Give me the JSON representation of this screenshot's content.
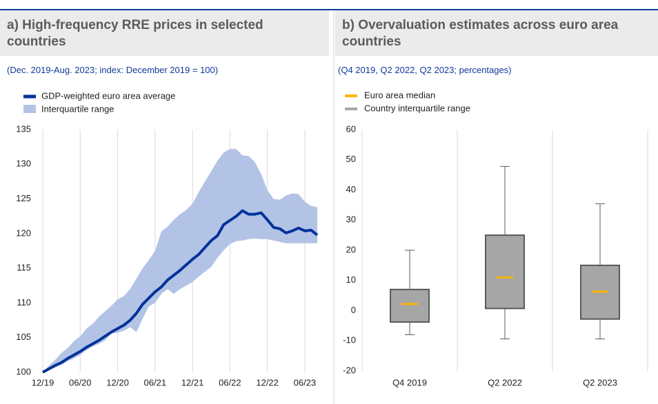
{
  "chart_data": [
    {
      "type": "line",
      "title": "a) High-frequency RRE prices in selected countries",
      "subtitle": "(Dec. 2019-Aug. 2023; index: December 2019 = 100)",
      "categories": [
        "12/19",
        null,
        null,
        null,
        null,
        null,
        "06/20",
        null,
        null,
        null,
        null,
        null,
        "12/20",
        null,
        null,
        null,
        null,
        null,
        "06/21",
        null,
        null,
        null,
        null,
        null,
        "12/21",
        null,
        null,
        null,
        null,
        null,
        "06/22",
        null,
        null,
        null,
        null,
        null,
        "12/22",
        null,
        null,
        null,
        null,
        null,
        "06/23",
        null,
        null
      ],
      "series": [
        {
          "name": "GDP-weighted euro area average",
          "color": "#003299",
          "values": [
            100,
            100.5,
            101,
            101.4,
            102,
            102.5,
            103,
            103.6,
            104.1,
            104.6,
            105.2,
            105.8,
            106.3,
            106.8,
            107.5,
            108.5,
            109.8,
            110.7,
            111.6,
            112.3,
            113.3,
            114,
            114.7,
            115.5,
            116.3,
            117,
            118,
            119,
            119.7,
            121.3,
            121.9,
            122.5,
            123.3,
            122.8,
            122.8,
            123,
            122,
            120.9,
            120.7,
            120.1,
            120.4,
            120.8,
            120.4,
            120.5,
            119.8
          ]
        },
        {
          "name": "Interquartile range",
          "color": "#b3c3e6",
          "upper": [
            100,
            101,
            101.8,
            102.8,
            103.5,
            104.5,
            105.2,
            106.3,
            107,
            108,
            108.8,
            109.6,
            110.5,
            111,
            112,
            113.5,
            115,
            116.2,
            117.5,
            120.3,
            121,
            122,
            122.8,
            123.4,
            124.3,
            126,
            127.5,
            129,
            130.5,
            131.7,
            132.2,
            132.2,
            131.3,
            131.2,
            130.3,
            128.6,
            126.3,
            125,
            124.9,
            125.5,
            125.8,
            125.7,
            124.6,
            124,
            123.8
          ],
          "lower": [
            100,
            100.3,
            100.7,
            101.1,
            101.6,
            102,
            102.5,
            103.2,
            103.7,
            104.1,
            104.6,
            105.6,
            105.7,
            106,
            106.5,
            105.8,
            107.7,
            109.5,
            110,
            111.3,
            112,
            111.3,
            112,
            112.5,
            113,
            113.8,
            114.5,
            115.2,
            116.5,
            117.6,
            118.5,
            118.9,
            119,
            119.2,
            119.3,
            119.2,
            119.2,
            119,
            118.8,
            118.6,
            118.6,
            118.6,
            118.6,
            118.6,
            118.6
          ]
        }
      ],
      "ylim": [
        100,
        135
      ],
      "yticks": [
        100,
        105,
        110,
        115,
        120,
        125,
        130,
        135
      ],
      "grid": true
    },
    {
      "type": "box",
      "title": "b) Overvaluation estimates across euro area countries",
      "subtitle": "(Q4 2019, Q2 2022, Q2 2023; percentages)",
      "categories": [
        "Q4 2019",
        "Q2 2022",
        "Q2 2023"
      ],
      "series": [
        {
          "name": "Euro area median",
          "color": "#ffb400",
          "values": [
            2.2,
            11,
            6.3
          ]
        },
        {
          "name": "Country interquartile range",
          "color": "#a6a6a6",
          "low": [
            -8,
            -9.4,
            -9.4
          ],
          "q1": [
            -3.8,
            0.7,
            -2.8
          ],
          "q3": [
            7,
            25,
            15
          ],
          "high": [
            20,
            47.8,
            35.4
          ]
        }
      ],
      "ylim": [
        -20,
        60
      ],
      "yticks": [
        -20,
        -10,
        0,
        10,
        20,
        30,
        40,
        50,
        60
      ],
      "grid": true
    }
  ]
}
